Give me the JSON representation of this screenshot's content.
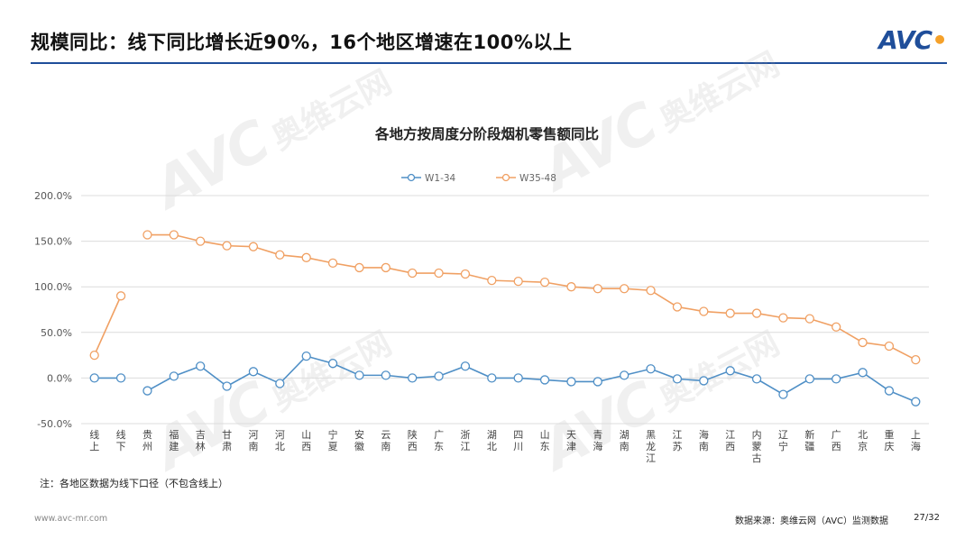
{
  "header": {
    "title": "规模同比：线下同比增长近90%，16个地区增速在100%以上",
    "logo_text": "AVC",
    "accent_color": "#1f4e9a"
  },
  "chart_data": {
    "type": "line",
    "title": "各地方按周度分阶段烟机零售额同比",
    "categories": [
      "线上",
      "线下",
      "贵州",
      "福建",
      "吉林",
      "甘肃",
      "河南",
      "河北",
      "山西",
      "宁夏",
      "安徽",
      "云南",
      "陕西",
      "广东",
      "浙江",
      "湖北",
      "四川",
      "山东",
      "天津",
      "青海",
      "湖南",
      "黑龙江",
      "江苏",
      "海南",
      "江西",
      "内蒙古",
      "辽宁",
      "新疆",
      "广西",
      "北京",
      "重庆",
      "上海"
    ],
    "y_ticks": [
      "200.0%",
      "150.0%",
      "100.0%",
      "50.0%",
      "0.0%",
      "-50.0%"
    ],
    "ylim": [
      -50,
      200
    ],
    "grid": true,
    "legend_position": "top-center",
    "series": [
      {
        "name": "W1-34",
        "color": "#4f8fc6",
        "segments": [
          {
            "start": 0,
            "values": [
              0,
              0
            ]
          },
          {
            "start": 2,
            "values": [
              -14,
              2,
              13,
              -9,
              7,
              -6,
              24,
              16,
              3,
              3,
              0,
              2,
              13,
              0,
              0,
              -2,
              -4,
              -4,
              3,
              10,
              -1,
              -3,
              8,
              -1,
              -18,
              -1,
              -1,
              6,
              -14,
              -26
            ]
          }
        ]
      },
      {
        "name": "W35-48",
        "color": "#f0a063",
        "segments": [
          {
            "start": 0,
            "values": [
              25,
              90
            ]
          },
          {
            "start": 2,
            "values": [
              157,
              157,
              150,
              145,
              144,
              135,
              132,
              126,
              121,
              121,
              115,
              115,
              114,
              107,
              106,
              105,
              100,
              98,
              98,
              96,
              78,
              73,
              71,
              71,
              66,
              65,
              56,
              39,
              35,
              20
            ]
          }
        ]
      }
    ]
  },
  "footnote": "注：各地区数据为线下口径（不包含线上）",
  "footer": {
    "url": "www.avc-mr.com",
    "source": "数据来源：奥维云网（AVC）监测数据",
    "page": "27/32"
  }
}
